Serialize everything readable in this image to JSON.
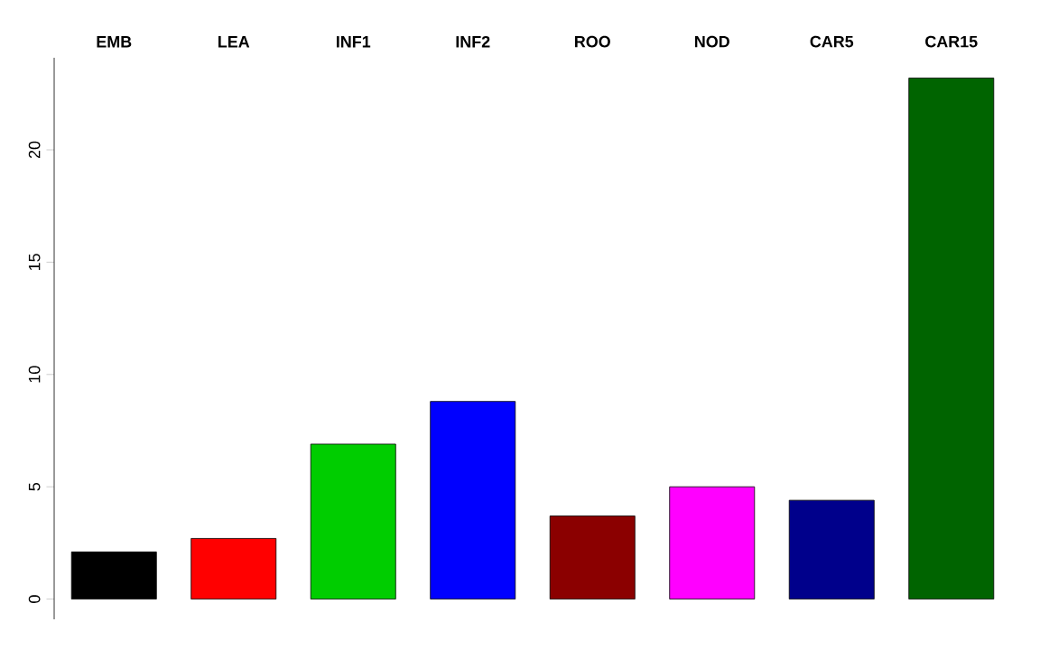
{
  "chart_data": {
    "type": "bar",
    "categories": [
      "EMB",
      "LEA",
      "INF1",
      "INF2",
      "ROO",
      "NOD",
      "CAR5",
      "CAR15"
    ],
    "values": [
      2.1,
      2.7,
      6.9,
      8.8,
      3.7,
      5.0,
      4.4,
      23.2
    ],
    "colors": [
      "#000000",
      "#ff0000",
      "#00cd00",
      "#0000ff",
      "#8b0000",
      "#ff00ff",
      "#00008b",
      "#006400"
    ],
    "ylim": [
      -0.9,
      24.1
    ],
    "yticks": [
      0,
      5,
      10,
      15,
      20
    ]
  }
}
